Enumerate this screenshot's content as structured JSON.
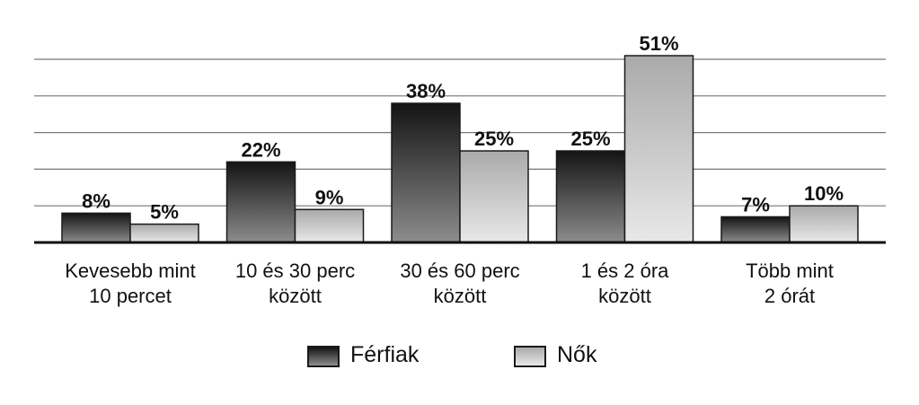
{
  "chart_data": {
    "type": "bar",
    "categories": [
      [
        "Kevesebb mint",
        "10 percet"
      ],
      [
        "10 és 30 perc",
        "között"
      ],
      [
        "30 és 60 perc",
        "között"
      ],
      [
        "1 és 2 óra",
        "között"
      ],
      [
        "Több mint",
        "2 órát"
      ]
    ],
    "series": [
      {
        "name": "Férfiak",
        "values": [
          8,
          22,
          38,
          25,
          7
        ],
        "labels": [
          "8%",
          "22%",
          "38%",
          "25%",
          "7%"
        ]
      },
      {
        "name": "Nők",
        "values": [
          5,
          9,
          25,
          51,
          10
        ],
        "labels": [
          "5%",
          "9%",
          "25%",
          "51%",
          "10%"
        ]
      }
    ],
    "ylim": [
      0,
      51
    ],
    "grid": true,
    "legend_position": "bottom",
    "colors": {
      "ferfiak_top": "#141414",
      "ferfiak_bottom": "#8c8c8c",
      "nok_top": "#aaaaaa",
      "nok_bottom": "#e8e8e8",
      "grid": "#777777",
      "axis": "#111111"
    }
  }
}
